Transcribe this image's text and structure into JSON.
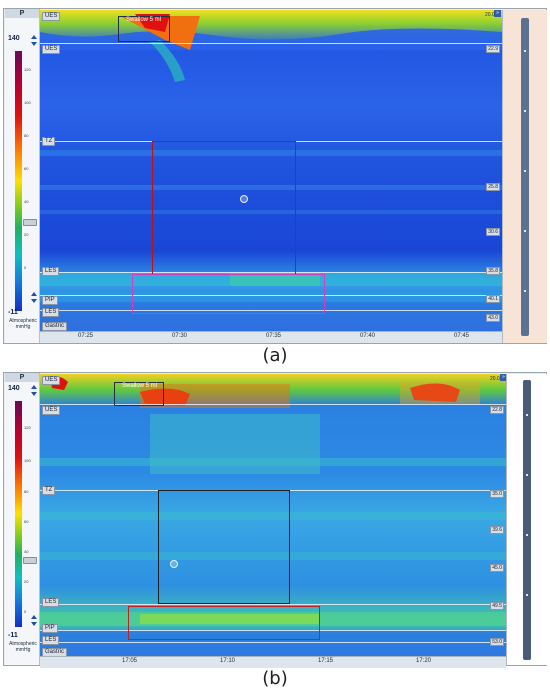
{
  "panels": [
    {
      "caption": "(a)",
      "scale": {
        "header": "P",
        "max": "140",
        "min": "-11",
        "unit": "Atmospheric mmHg",
        "ticks": [
          "120",
          "100",
          "80",
          "60",
          "40",
          "20",
          "0"
        ],
        "slider_label": "30"
      },
      "swallow_label": "Swallow 5 ml",
      "top_value": "20.0",
      "sensor_labels": [
        "UES",
        "UES",
        "TZ",
        "LES",
        "PIP",
        "LES",
        "Gastric"
      ],
      "right_values": [
        "22.9",
        "25.8",
        "30.6",
        "35.8",
        "40.1",
        "43.0"
      ],
      "time_ticks": [
        "07:25",
        "07:30",
        "07:35",
        "07:40",
        "07:45"
      ],
      "colors": {
        "contour_box": "#c01010",
        "les_box": "#d040c0"
      }
    },
    {
      "caption": "(b)",
      "scale": {
        "header": "P",
        "max": "140",
        "min": "-11",
        "unit": "Atmospheric mmHg",
        "ticks": [
          "120",
          "100",
          "80",
          "60",
          "40",
          "20",
          "0"
        ],
        "slider_label": "30"
      },
      "swallow_label": "Swallow 5 ml",
      "top_value": "20.0",
      "sensor_labels": [
        "UES",
        "UES",
        "TZ",
        "LES",
        "PIP",
        "LES",
        "Gastric"
      ],
      "right_values": [
        "22.8",
        "35.0",
        "39.6",
        "45.0",
        "49.5",
        "53.0"
      ],
      "time_ticks": [
        "17:05",
        "17:10",
        "17:15",
        "17:20"
      ],
      "colors": {
        "contour_box": "#202020",
        "les_box": "#c02020"
      }
    }
  ]
}
